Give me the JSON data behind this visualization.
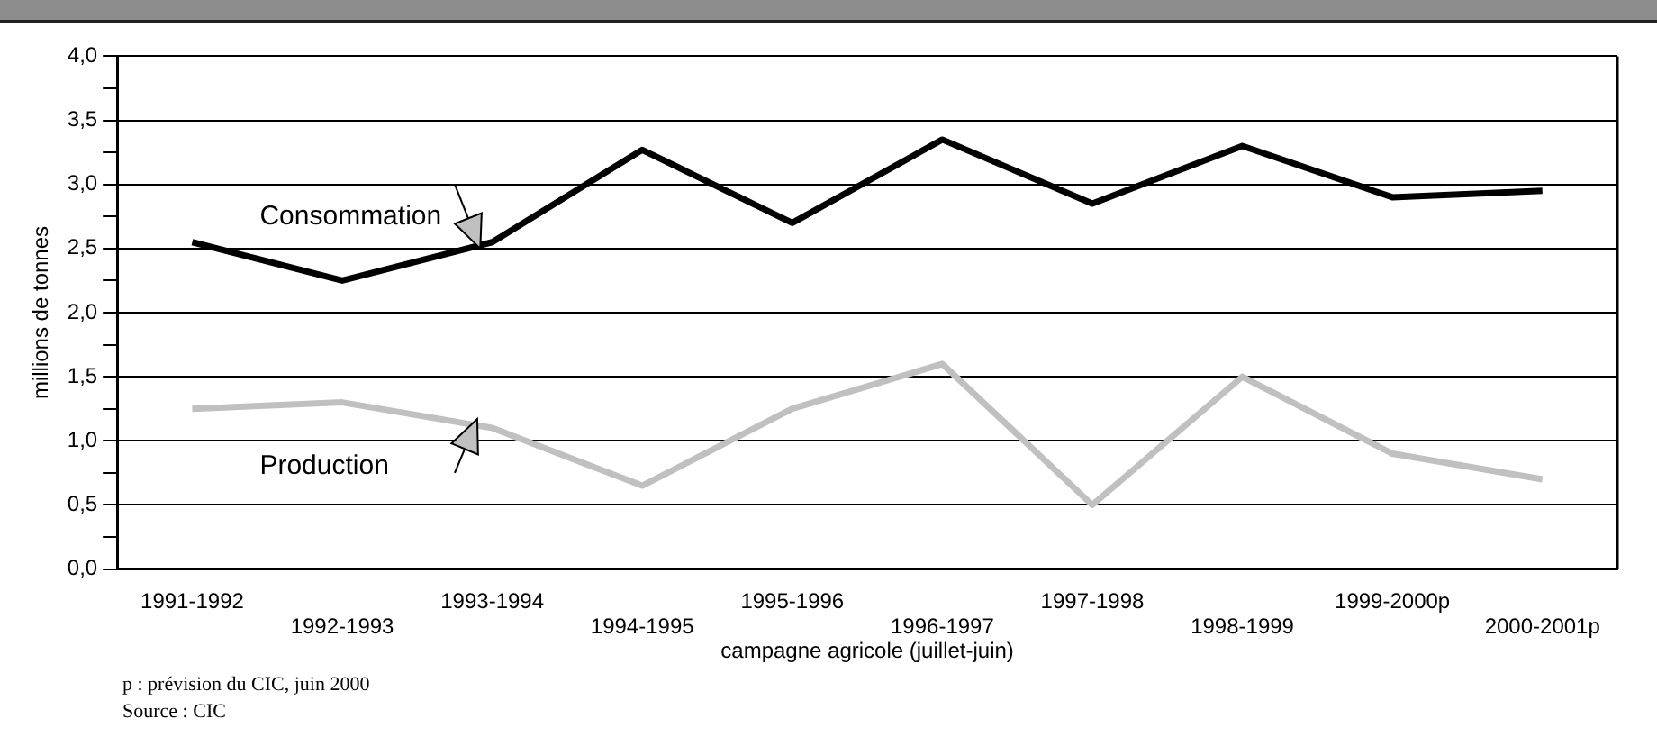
{
  "chart_data": {
    "type": "line",
    "xlabel": "campagne agricole (juillet-juin)",
    "ylabel": "millions de tonnes",
    "categories": [
      "1991-1992",
      "1992-1993",
      "1993-1994",
      "1994-1995",
      "1995-1996",
      "1996-1997",
      "1997-1998",
      "1998-1999",
      "1999-2000p",
      "2000-2001p"
    ],
    "series": [
      {
        "name": "Consommation",
        "color": "#000000",
        "values": [
          2.55,
          2.25,
          2.55,
          3.27,
          2.7,
          3.35,
          2.85,
          3.3,
          2.9,
          2.95
        ]
      },
      {
        "name": "Production",
        "color": "#c0c0c0",
        "values": [
          1.25,
          1.3,
          1.1,
          0.65,
          1.25,
          1.6,
          0.5,
          1.5,
          0.9,
          0.7
        ]
      }
    ],
    "ylim": [
      0,
      4
    ],
    "yticks": [
      {
        "value": 0,
        "label": "0,0"
      },
      {
        "value": 0.25,
        "label": null
      },
      {
        "value": 0.5,
        "label": "0,5"
      },
      {
        "value": 0.75,
        "label": null
      },
      {
        "value": 1,
        "label": "1,0"
      },
      {
        "value": 1.25,
        "label": null
      },
      {
        "value": 1.5,
        "label": "1,5"
      },
      {
        "value": 1.75,
        "label": null
      },
      {
        "value": 2,
        "label": "2,0"
      },
      {
        "value": 2.25,
        "label": null
      },
      {
        "value": 2.5,
        "label": "2,5"
      },
      {
        "value": 2.75,
        "label": null
      },
      {
        "value": 3,
        "label": "3,0"
      },
      {
        "value": 3.25,
        "label": null
      },
      {
        "value": 3.5,
        "label": "3,5"
      },
      {
        "value": 3.75,
        "label": null
      },
      {
        "value": 4,
        "label": "4,0"
      }
    ],
    "grid": "y",
    "marker": "none",
    "line_style": "solid",
    "annotations": [
      "p : prévision du CIC, juin 2000",
      "Source : CIC"
    ]
  }
}
